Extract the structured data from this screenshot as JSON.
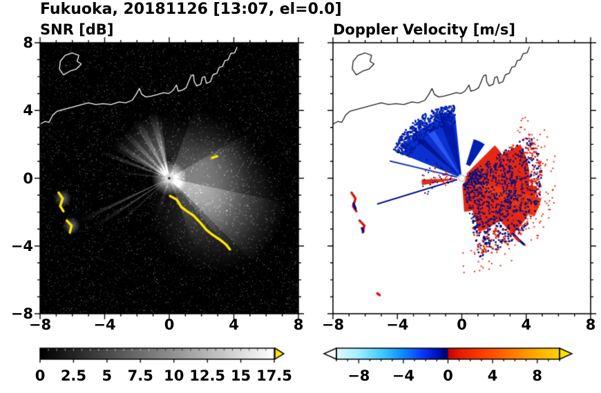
{
  "header": {
    "title": "Fukuoka, 20181126 [13:07, el=0.0]"
  },
  "panels": {
    "snr": {
      "title": "SNR [dB]",
      "y_tick_labels": [
        "8",
        "4",
        "0",
        "−4",
        "−8"
      ],
      "x_tick_labels": [
        "−8",
        "−4",
        "0",
        "4",
        "8"
      ],
      "colorbar_tick_labels": [
        "0",
        "2.5",
        "5",
        "7.5",
        "10",
        "12.5",
        "15",
        "17.5"
      ]
    },
    "velocity": {
      "title": "Doppler Velocity [m/s]",
      "x_tick_labels": [
        "−8",
        "−4",
        "0",
        "4",
        "8"
      ],
      "colorbar_tick_labels": [
        "−8",
        "−4",
        "0",
        "4",
        "8"
      ]
    }
  },
  "chart_data": {
    "type": "heatmap",
    "subtype": "radar_ppi_pair",
    "site": "Fukuoka",
    "date": "20181126",
    "time": "13:07",
    "elevation_deg": 0.0,
    "coastline": {
      "snr_color": "#ffffff",
      "velocity_color": "#1a1a1a",
      "main": [
        [
          -8,
          3.2
        ],
        [
          -7.7,
          3.35
        ],
        [
          -7.45,
          3.3
        ],
        [
          -7.2,
          3.75
        ],
        [
          -6.95,
          3.95
        ],
        [
          -6.6,
          4.05
        ],
        [
          -6.2,
          4.15
        ],
        [
          -5.6,
          4.3
        ],
        [
          -5.0,
          4.45
        ],
        [
          -4.55,
          4.35
        ],
        [
          -4.1,
          4.4
        ],
        [
          -3.6,
          4.35
        ],
        [
          -3.1,
          4.5
        ],
        [
          -2.7,
          4.45
        ],
        [
          -2.3,
          4.6
        ],
        [
          -2.05,
          4.95
        ],
        [
          -1.85,
          5.3
        ],
        [
          -1.7,
          4.95
        ],
        [
          -1.45,
          4.8
        ],
        [
          -1.1,
          4.85
        ],
        [
          -0.7,
          4.95
        ],
        [
          -0.35,
          5.05
        ],
        [
          -0.05,
          5.0
        ],
        [
          0.2,
          5.15
        ],
        [
          0.45,
          5.5
        ],
        [
          0.55,
          5.15
        ],
        [
          0.8,
          5.2
        ],
        [
          1.05,
          5.35
        ],
        [
          1.2,
          5.7
        ],
        [
          1.35,
          6.05
        ],
        [
          1.5,
          6.1
        ],
        [
          1.55,
          5.7
        ],
        [
          1.7,
          5.45
        ],
        [
          1.95,
          5.55
        ],
        [
          2.05,
          5.95
        ],
        [
          2.2,
          6.0
        ],
        [
          2.3,
          5.6
        ],
        [
          2.55,
          5.7
        ],
        [
          2.7,
          6.1
        ],
        [
          2.95,
          6.2
        ],
        [
          3.1,
          6.55
        ],
        [
          3.3,
          6.6
        ],
        [
          3.45,
          6.95
        ],
        [
          3.65,
          7.0
        ],
        [
          3.8,
          7.35
        ],
        [
          4.05,
          7.4
        ],
        [
          4.2,
          7.75
        ]
      ],
      "island": [
        [
          -6.55,
          6.1
        ],
        [
          -6.8,
          6.45
        ],
        [
          -6.75,
          6.9
        ],
        [
          -6.45,
          7.25
        ],
        [
          -6.0,
          7.4
        ],
        [
          -5.6,
          7.25
        ],
        [
          -5.7,
          6.9
        ],
        [
          -5.45,
          6.75
        ],
        [
          -5.75,
          6.45
        ],
        [
          -6.1,
          6.35
        ],
        [
          -6.55,
          6.1
        ]
      ]
    },
    "panels": [
      {
        "id": "snr",
        "title": "SNR [dB]",
        "xlim": [
          -8,
          8
        ],
        "ylim": [
          -8,
          8
        ],
        "x_ticks": [
          -8,
          -4,
          0,
          4,
          8
        ],
        "y_ticks": [
          -8,
          -4,
          0,
          4,
          8
        ],
        "minor_step": 1,
        "background": "#000000",
        "radar_center": [
          0,
          0
        ],
        "center_glow": {
          "core_r": 0.28,
          "glow_r": 1.1,
          "alpha": 0.95
        },
        "noise": {
          "count": 9000,
          "seed": 7
        },
        "beams": [
          {
            "a0": 98,
            "a1": 153,
            "r": 4.1,
            "alpha": 0.4
          },
          {
            "a0": 101,
            "a1": 108,
            "r": 4.35,
            "alpha": 0.4
          },
          {
            "a0": 116,
            "a1": 123,
            "r": 4.25,
            "alpha": 0.38
          },
          {
            "a0": 131,
            "a1": 137,
            "r": 4.05,
            "alpha": 0.33
          },
          {
            "a0": 144,
            "a1": 149,
            "r": 4.2,
            "alpha": 0.33
          },
          {
            "a0": 157,
            "a1": 161,
            "r": 4.6,
            "alpha": 0.4
          },
          {
            "a0": 171,
            "a1": 175,
            "r": 3.3,
            "alpha": 0.22
          },
          {
            "a0": 204.5,
            "a1": 207,
            "r": 6.2,
            "alpha": 0.45
          },
          {
            "a0": 212,
            "a1": 214.5,
            "r": 5.6,
            "alpha": 0.38
          },
          {
            "a0": 221,
            "a1": 223.5,
            "r": 4.2,
            "alpha": 0.25
          },
          {
            "a0": -70,
            "a1": 70,
            "r": 4.8,
            "alpha": 0.2
          },
          {
            "a0": -50,
            "a1": 30,
            "r": 6.2,
            "alpha": 0.2
          },
          {
            "a0": -45,
            "a1": -12,
            "r": 7.6,
            "alpha": 0.28
          },
          {
            "a0": 248,
            "a1": 258,
            "r": 2.4,
            "alpha": 0.15
          }
        ],
        "halos": [
          {
            "x": 2.9,
            "y": -1.6,
            "r": 4.2,
            "alpha": 0.26
          },
          {
            "x": 2.3,
            "y": 0.9,
            "r": 3.0,
            "alpha": 0.16
          },
          {
            "x": -0.4,
            "y": 1.8,
            "r": 2.2,
            "alpha": 0.12
          }
        ],
        "clutter_color": "#ffe600",
        "clutter": [
          {
            "pts": [
              [
                -6.85,
                -0.85
              ],
              [
                -6.6,
                -1.2
              ],
              [
                -6.75,
                -1.65
              ],
              [
                -6.55,
                -1.95
              ]
            ]
          },
          {
            "pts": [
              [
                -6.35,
                -2.5
              ],
              [
                -6.05,
                -2.8
              ],
              [
                -6.15,
                -3.2
              ]
            ]
          },
          {
            "pts": [
              [
                0.05,
                -1.05
              ],
              [
                0.45,
                -1.25
              ],
              [
                0.75,
                -1.7
              ],
              [
                1.1,
                -1.95
              ],
              [
                1.5,
                -2.2
              ],
              [
                1.95,
                -2.65
              ],
              [
                2.3,
                -3.05
              ],
              [
                2.7,
                -3.35
              ],
              [
                3.1,
                -3.6
              ],
              [
                3.5,
                -3.9
              ],
              [
                3.75,
                -4.2
              ]
            ]
          },
          {
            "pts": [
              [
                2.65,
                1.2
              ],
              [
                2.95,
                1.3
              ]
            ]
          }
        ],
        "colorbar": {
          "min": 0,
          "max": 17.5,
          "ticks": [
            0,
            2.5,
            5,
            7.5,
            10,
            12.5,
            15,
            17.5
          ],
          "start_color": "#000000",
          "end_color": "#ffffff",
          "over_color": "#ffe600",
          "segments": 28
        }
      },
      {
        "id": "velocity",
        "title": "Doppler Velocity [m/s]",
        "xlim": [
          -8,
          8
        ],
        "ylim": [
          -8,
          8
        ],
        "x_ticks": [
          -8,
          -4,
          0,
          4,
          8
        ],
        "y_ticks": [
          -8,
          -4,
          0,
          4,
          8
        ],
        "minor_step": 1,
        "background": "#ffffff",
        "radar_center": [
          0,
          0
        ],
        "center_dot": {
          "r": 0.2,
          "fill": "#ffffff",
          "stroke": "#8899aa"
        },
        "sectors": [
          {
            "a0": 96,
            "a1": 158,
            "r": 3.95,
            "r0": 0.25,
            "color": "#0a30d0"
          },
          {
            "a0": 99,
            "a1": 111,
            "r": 4.15,
            "r0": 0.3,
            "color": "#0019a6"
          },
          {
            "a0": 120,
            "a1": 127,
            "r": 3.9,
            "r0": 0.3,
            "color": "#2a55ee"
          },
          {
            "a0": 134,
            "a1": 140,
            "r": 4.05,
            "r0": 0.3,
            "color": "#001690"
          },
          {
            "a0": 146,
            "a1": 153,
            "r": 4.2,
            "r0": 0.3,
            "color": "#0a30d0"
          },
          {
            "a0": 56,
            "a1": 73,
            "r": 2.55,
            "r0": 0.9,
            "color": "#0020b0"
          },
          {
            "a0": 25,
            "a1": 45,
            "r": 2.9,
            "r0": 0.4,
            "color": "#e62812"
          },
          {
            "a0": -10,
            "a1": 30,
            "r": 4.2,
            "r0": 0.25,
            "color": "#e62812"
          },
          {
            "a0": -48,
            "a1": -6,
            "r": 4.7,
            "r0": 0.25,
            "color": "#e62812"
          },
          {
            "a0": -72,
            "a1": -44,
            "r": 3.5,
            "r0": 0.3,
            "color": "#e62812"
          },
          {
            "a0": -28,
            "a1": -14,
            "r": 5.1,
            "r0": 0.3,
            "color": "#ef3a10"
          },
          {
            "a0": -86,
            "a1": -70,
            "r": 2.1,
            "r0": 0.4,
            "color": "#e62812"
          },
          {
            "a0": 182,
            "a1": 190,
            "r": 2.5,
            "r0": 0.4,
            "color": "#e62812"
          }
        ],
        "rays": [
          {
            "a": 166.5,
            "r": 4.6,
            "w": 2,
            "color": "#1030c0"
          },
          {
            "a": 197,
            "r": 5.5,
            "w": 2,
            "color": "#001090"
          }
        ],
        "speckle": [
          {
            "a0": 96,
            "a1": 158,
            "rmin": 3.4,
            "rmax": 4.6,
            "count": 550,
            "colors": [
              "#0a30d0",
              "#001690"
            ],
            "size": 2.6
          },
          {
            "a0": -78,
            "a1": 33,
            "rmin": 3.0,
            "rmax": 5.0,
            "count": 800,
            "colors": [
              "#e62812",
              "#001080"
            ],
            "size": 2.6
          },
          {
            "a0": -78,
            "a1": 33,
            "rmin": 0.4,
            "rmax": 3.2,
            "count": 500,
            "colors": [
              "#001080"
            ],
            "size": 2.2
          },
          {
            "a0": -90,
            "a1": 45,
            "rmin": 4.5,
            "rmax": 6.0,
            "count": 120,
            "colors": [
              "#e62812"
            ],
            "size": 2.0
          },
          {
            "a0": 150,
            "a1": 205,
            "rmin": 0.5,
            "rmax": 2.5,
            "count": 60,
            "colors": [
              "#e62812",
              "#001080"
            ],
            "size": 2.0
          }
        ],
        "clutter": [
          {
            "color": "#d81810",
            "pts": [
              [
                -6.85,
                -0.85
              ],
              [
                -6.6,
                -1.2
              ],
              [
                -6.75,
                -1.65
              ],
              [
                -6.55,
                -1.95
              ]
            ]
          },
          {
            "color": "#001090",
            "pts": [
              [
                -6.72,
                -1.5
              ],
              [
                -6.6,
                -1.8
              ]
            ]
          },
          {
            "color": "#d81810",
            "pts": [
              [
                -6.35,
                -2.5
              ],
              [
                -6.05,
                -2.8
              ],
              [
                -6.15,
                -3.2
              ]
            ]
          },
          {
            "color": "#001090",
            "pts": [
              [
                -6.2,
                -2.95
              ],
              [
                -6.12,
                -3.15
              ]
            ]
          },
          {
            "color": "#001090",
            "pts": [
              [
                3.2,
                -3.3
              ],
              [
                3.5,
                -3.6
              ],
              [
                3.85,
                -3.9
              ]
            ]
          },
          {
            "color": "#d81810",
            "pts": [
              [
                3.3,
                -3.45
              ],
              [
                3.55,
                -3.7
              ]
            ]
          },
          {
            "color": "#d81810",
            "pts": [
              [
                -5.25,
                -6.8
              ],
              [
                -5.1,
                -6.9
              ]
            ]
          }
        ],
        "colorbar": {
          "min": -10,
          "max": 10,
          "ticks": [
            -8,
            -4,
            0,
            4,
            8
          ],
          "minor_step": 1,
          "stops": [
            [
              0,
              "#dffaff"
            ],
            [
              0.1,
              "#9feeff"
            ],
            [
              0.2,
              "#45ccff"
            ],
            [
              0.3,
              "#0d8aff"
            ],
            [
              0.38,
              "#0a3cff"
            ],
            [
              0.45,
              "#0012c0"
            ],
            [
              0.499,
              "#000060"
            ],
            [
              0.501,
              "#c80000"
            ],
            [
              0.56,
              "#e81e00"
            ],
            [
              0.68,
              "#ff4600"
            ],
            [
              0.8,
              "#ff7e00"
            ],
            [
              0.9,
              "#ffae00"
            ],
            [
              1,
              "#ffd200"
            ]
          ],
          "under_color": "#ffffff",
          "over_color": "#ffe000"
        }
      }
    ]
  }
}
